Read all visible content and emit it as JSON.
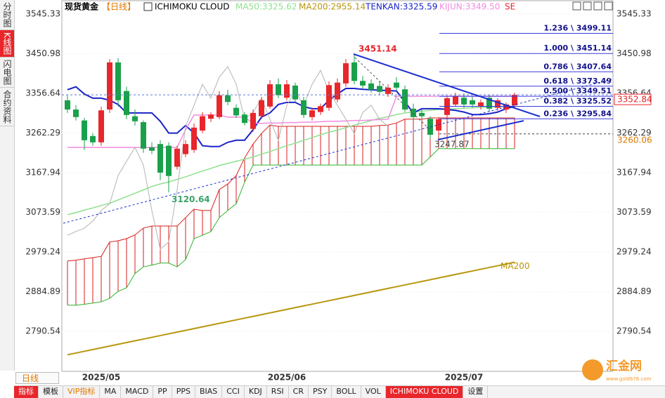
{
  "header": {
    "title": "现货黄金",
    "period": "【日线】",
    "indicator": "ICHIMOKU CLOUD",
    "suffix": "SE"
  },
  "sidebar": {
    "tabs": [
      "分时图",
      "K线图",
      "闪电图",
      "合约资料"
    ]
  },
  "toolbar": {
    "period": "日线",
    "items": [
      "指标",
      "模板",
      "VIP指标",
      "MA",
      "MACD",
      "PP",
      "PPS",
      "BIAS",
      "CCI",
      "KDJ",
      "RSI",
      "CR",
      "PSY",
      "BOLL",
      "VOL",
      "ICHIMOKU CLOUD",
      "设置"
    ]
  },
  "watermark": {
    "name": "汇金网",
    "url": "www.gold678.com"
  },
  "chart_data": {
    "type": "candlestick",
    "categories": [
      null,
      null,
      null,
      null,
      "2025/05",
      null,
      null,
      null,
      null,
      null,
      null,
      null,
      null,
      null,
      null,
      null,
      null,
      null,
      null,
      null,
      null,
      null,
      null,
      null,
      null,
      null,
      "2025/06",
      null,
      null,
      null,
      null,
      null,
      null,
      null,
      null,
      null,
      null,
      null,
      null,
      null,
      null,
      null,
      null,
      null,
      null,
      null,
      null,
      "2025/07",
      null,
      null,
      null,
      null,
      null,
      null
    ],
    "open": [
      3340,
      3318,
      3292,
      3255,
      3240,
      3318,
      3430,
      3362,
      3302,
      3288,
      3228,
      3236,
      3232,
      3182,
      3212,
      3222,
      3268,
      3296,
      3300,
      3352,
      3322,
      3306,
      3272,
      3302,
      3325,
      3378,
      3346,
      3375,
      3340,
      3300,
      3312,
      3322,
      3342,
      3380,
      3430,
      3386,
      3380,
      3374,
      3355,
      3382,
      3366,
      3320,
      3310,
      3296,
      3268,
      3305,
      3330,
      3346,
      3340,
      3325,
      3346,
      3322,
      3318,
      3328
    ],
    "high": [
      3352,
      3328,
      3298,
      3262,
      3325,
      3438,
      3440,
      3372,
      3318,
      3292,
      3240,
      3245,
      3240,
      3232,
      3245,
      3285,
      3312,
      3312,
      3362,
      3365,
      3330,
      3312,
      3318,
      3348,
      3388,
      3392,
      3388,
      3382,
      3348,
      3322,
      3332,
      3385,
      3392,
      3438,
      3451.14,
      3398,
      3390,
      3385,
      3378,
      3395,
      3375,
      3332,
      3318,
      3302,
      3300,
      3350,
      3358,
      3356,
      3348,
      3342,
      3352,
      3345,
      3335,
      3358
    ],
    "low": [
      3310,
      3292,
      3222,
      3232,
      3232,
      3310,
      3325,
      3295,
      3280,
      3215,
      3212,
      3150,
      3120.64,
      3175,
      3205,
      3215,
      3262,
      3288,
      3295,
      3328,
      3298,
      3280,
      3265,
      3295,
      3320,
      3345,
      3340,
      3335,
      3298,
      3292,
      3305,
      3315,
      3335,
      3372,
      3378,
      3368,
      3358,
      3352,
      3348,
      3362,
      3312,
      3292,
      3296,
      3247.87,
      3262,
      3298,
      3325,
      3322,
      3322,
      3318,
      3312,
      3315,
      3310,
      3322
    ],
    "close": [
      3318,
      3300,
      3245,
      3240,
      3316,
      3430,
      3340,
      3305,
      3290,
      3225,
      3220,
      3168,
      3160,
      3225,
      3236,
      3275,
      3302,
      3306,
      3352,
      3336,
      3304,
      3286,
      3310,
      3340,
      3378,
      3352,
      3378,
      3342,
      3305,
      3316,
      3326,
      3376,
      3382,
      3428,
      3386,
      3375,
      3365,
      3360,
      3370,
      3370,
      3318,
      3300,
      3302,
      3258,
      3295,
      3345,
      3350,
      3330,
      3330,
      3335,
      3320,
      3340,
      3330,
      3352.84
    ],
    "up_color": "#e8262b",
    "down_color": "#1aa04a",
    "series": [
      {
        "name": "MA50",
        "legend_label": "MA50:3325.62",
        "color": "#8fe08f",
        "values": [
          3068,
          3073,
          3079,
          3084,
          3090,
          3095,
          3103,
          3111,
          3119,
          3127,
          3135,
          3141,
          3146,
          3152,
          3158,
          3165,
          3172,
          3178,
          3185,
          3190,
          3195,
          3200,
          3205,
          3212,
          3218,
          3225,
          3232,
          3238,
          3245,
          3251,
          3258,
          3264,
          3269,
          3275,
          3281,
          3286,
          3292,
          3297,
          3301,
          3306,
          3310,
          3312,
          3314,
          3316,
          3318,
          3319,
          3320,
          3321,
          3322,
          3323,
          3324,
          3324.5,
          3325,
          3325.62
        ]
      },
      {
        "name": "MA200",
        "legend_label": "MA200:2955.14",
        "color": "#b8960c",
        "values": [
          2735,
          2739.15,
          2743.3,
          2747.45,
          2751.6,
          2755.75,
          2759.9,
          2764.05,
          2768.2,
          2772.35,
          2776.5,
          2780.65,
          2784.8,
          2788.95,
          2793.1,
          2797.25,
          2801.4,
          2805.55,
          2809.7,
          2813.85,
          2818,
          2822.15,
          2826.3,
          2830.45,
          2834.6,
          2838.75,
          2842.9,
          2847.05,
          2851.2,
          2855.35,
          2859.5,
          2863.65,
          2867.8,
          2871.95,
          2876.1,
          2880.25,
          2884.4,
          2888.55,
          2892.7,
          2896.85,
          2901,
          2905.15,
          2909.3,
          2913.45,
          2917.6,
          2921.75,
          2925.9,
          2930.05,
          2934.2,
          2938.35,
          2942.5,
          2946.65,
          2950.8,
          2955.14
        ]
      },
      {
        "name": "TENKAN",
        "legend_label": "TENKAN:3325.59",
        "color": "#1a23c8",
        "values": [
          3365,
          3372,
          3355,
          3345,
          3345,
          3340,
          3330,
          3310,
          3310,
          3310,
          3310,
          3290,
          3262,
          3262,
          3280,
          3262,
          3232,
          3230,
          3230,
          3240,
          3245,
          3245,
          3270,
          3300,
          3310,
          3330,
          3335,
          3335,
          3325,
          3320,
          3320,
          3340,
          3355,
          3368,
          3368,
          3366,
          3365,
          3364,
          3363,
          3362,
          3336,
          3310,
          3320,
          3320,
          3320,
          3318,
          3316,
          3312,
          3306,
          3306,
          3308,
          3312,
          3320,
          3325.59
        ]
      },
      {
        "name": "KIJUN",
        "legend_label": "KIJUN:3349.50",
        "color": "#f08ce0",
        "values": [
          3228,
          3228,
          3228,
          3228,
          3228,
          3228,
          3228,
          3228,
          3228,
          3228,
          3228,
          3228,
          3228,
          3228,
          3270,
          3305,
          3305,
          3305,
          3305,
          3300,
          3300,
          3300,
          3285,
          3285,
          3286,
          3286,
          3287,
          3287,
          3288,
          3288,
          3289,
          3290,
          3290,
          3291,
          3292,
          3292,
          3293,
          3294,
          3295,
          3349.5,
          3349.5,
          3349.5,
          3349.5,
          3349.5,
          3349.5,
          3349.5,
          3349.5,
          3349.5,
          3349.5,
          3349.5,
          3349.5,
          3349.5,
          3349.5,
          3349.5
        ]
      },
      {
        "color": "#b4b4b4",
        "values": [
          3019,
          3028,
          3036,
          3053,
          3078,
          3094,
          3161,
          3195,
          3228,
          3186,
          3078,
          2986,
          3003,
          3128,
          3278,
          3328,
          3378,
          3345,
          3395,
          3420,
          3378,
          3295,
          3311,
          3345,
          3295,
          3245,
          3328,
          3361,
          3328,
          3378,
          3411,
          3361,
          3328,
          3295,
          3261,
          3311,
          3328,
          3295,
          3278,
          null,
          null,
          null,
          null,
          null,
          null,
          null,
          null,
          null,
          null,
          null,
          null,
          null,
          null,
          null
        ]
      }
    ],
    "cloud": {
      "up_color": "#d81e1e",
      "edge_a_color": "#d81e1e",
      "edge_b_color": "#2db52d",
      "span_a": [
        2958,
        2960,
        2963,
        2966,
        2969,
        3003,
        3006,
        3011,
        3020,
        3036,
        3041,
        3041,
        3041,
        3041,
        3061,
        3081,
        3078,
        3078,
        3128,
        3141,
        3161,
        3203,
        3236,
        3261,
        3281,
        3278,
        3278,
        3278,
        3278,
        3278,
        3278,
        3278,
        3278,
        3278,
        3278,
        3278,
        3278,
        3280,
        3281,
        3286,
        3295,
        3295,
        3295,
        3298,
        3298,
        3298,
        3298,
        3298,
        3298,
        3298,
        3298,
        3298,
        3298,
        3298
      ],
      "span_b": [
        2853,
        2853,
        2855,
        2858,
        2861,
        2869,
        2886,
        2894,
        2928,
        2944,
        2948,
        2953,
        2953,
        2944,
        2961,
        3011,
        3019,
        3028,
        3061,
        3078,
        3094,
        3145,
        3186,
        3186,
        3186,
        3186,
        3186,
        3186,
        3186,
        3186,
        3186,
        3186,
        3186,
        3186,
        3186,
        3186,
        3186,
        3186,
        3186,
        3186,
        3186,
        3186,
        3186,
        3205,
        3225,
        3225,
        3225,
        3225,
        3225,
        3225,
        3225,
        3225,
        3225,
        3225
      ]
    },
    "fib_levels": [
      {
        "label": "1.236 \\ 3499.11",
        "value": 3499.11
      },
      {
        "label": "1.000 \\ 3451.14",
        "value": 3451.14
      },
      {
        "label": "0.786 \\ 3407.64",
        "value": 3407.64
      },
      {
        "label": "0.618 \\ 3373.49",
        "value": 3373.49
      },
      {
        "label": "0.500 \\ 3349.51",
        "value": 3349.51
      },
      {
        "label": "0.382 \\ 3325.52",
        "value": 3325.52
      },
      {
        "label": "0.236 \\ 3295.84",
        "value": 3295.84
      }
    ],
    "marker_line": 3260.06,
    "ylim": [
      2694,
      3570
    ],
    "yticks": [
      3545.33,
      3450.98,
      3356.64,
      3262.29,
      3167.94,
      3073.59,
      2979.24,
      2884.89,
      2790.54
    ],
    "grid": true
  }
}
